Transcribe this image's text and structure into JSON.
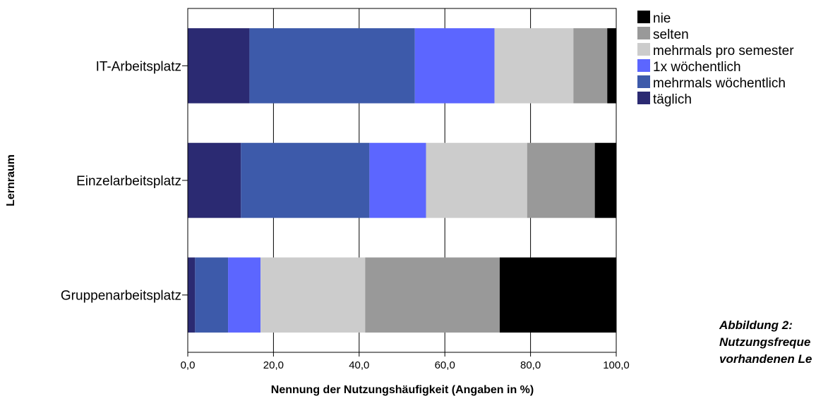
{
  "chart_data": {
    "type": "bar",
    "orientation": "horizontal",
    "stacked": true,
    "xlabel": "Nennung der Nutzungshäufigkeit (Angaben in %)",
    "ylabel": "Lernraum",
    "xlim": [
      0,
      100
    ],
    "xticks": [
      "0,0",
      "20,0",
      "40,0",
      "60,0",
      "80,0",
      "100,0"
    ],
    "grid": "vertical",
    "legend_position": "right",
    "categories": [
      "IT-Arbeitsplatz",
      "Einzelarbeitsplatz",
      "Gruppenarbeitsplatz"
    ],
    "series": [
      {
        "name": "täglich",
        "color": "#2b2a72",
        "values": [
          14.4,
          12.4,
          1.7
        ]
      },
      {
        "name": "mehrmals wöchentlich",
        "color": "#3d5aaa",
        "values": [
          38.6,
          30.0,
          7.7
        ]
      },
      {
        "name": "1x wöchentlich",
        "color": "#5c66ff",
        "values": [
          18.6,
          13.2,
          7.6
        ]
      },
      {
        "name": "mehrmals pro semester",
        "color": "#cccccc",
        "values": [
          18.4,
          23.6,
          24.4
        ]
      },
      {
        "name": "selten",
        "color": "#999999",
        "values": [
          7.9,
          15.8,
          31.4
        ]
      },
      {
        "name": "nie",
        "color": "#000000",
        "values": [
          2.1,
          5.0,
          27.2
        ]
      }
    ],
    "legend_order": [
      "nie",
      "selten",
      "mehrmals pro semester",
      "1x wöchentlich",
      "mehrmals wöchentlich",
      "täglich"
    ]
  },
  "caption": {
    "line1": "Abbildung 2:",
    "line2": "Nutzungsfreque",
    "line3": "vorhandenen Le"
  }
}
